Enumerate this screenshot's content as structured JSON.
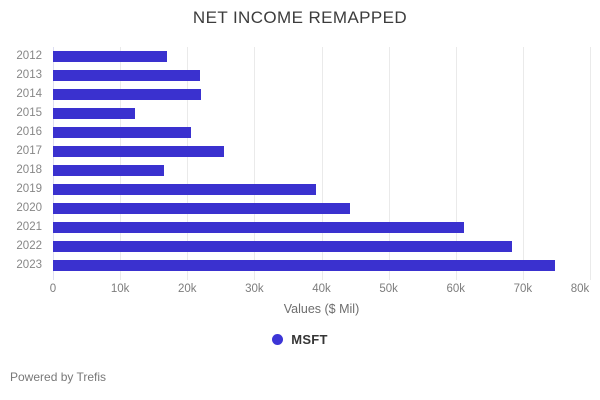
{
  "title": "NET INCOME REMAPPED",
  "chart_data": {
    "type": "bar",
    "orientation": "horizontal",
    "title": "NET INCOME REMAPPED",
    "categories": [
      "2012",
      "2013",
      "2014",
      "2015",
      "2016",
      "2017",
      "2018",
      "2019",
      "2020",
      "2021",
      "2022",
      "2023"
    ],
    "series": [
      {
        "name": "MSFT",
        "values": [
          17000,
          21900,
          22100,
          12200,
          20500,
          25500,
          16500,
          39200,
          44300,
          61300,
          68400,
          74800
        ]
      }
    ],
    "xlabel": "Values ($ Mil)",
    "ylabel": "",
    "xlim": [
      0,
      80000
    ],
    "xticks": [
      "0",
      "10k",
      "20k",
      "30k",
      "40k",
      "50k",
      "60k",
      "70k",
      "80k"
    ],
    "grid": true,
    "legend_position": "bottom",
    "bar_color": "#3a31cf",
    "legend_dot_color": "#3c35d6"
  },
  "legend": {
    "items": [
      {
        "label": "MSFT",
        "color": "#3c35d6"
      }
    ]
  },
  "footer": {
    "text": "Powered by Trefis"
  },
  "colors": {
    "accent": "#3a31cf",
    "gridline": "#eaeaea",
    "zero_line": "#dedef2",
    "axis_text": "#7d7d7d",
    "title_text": "#3c3c3c",
    "background": "#ffffff"
  }
}
